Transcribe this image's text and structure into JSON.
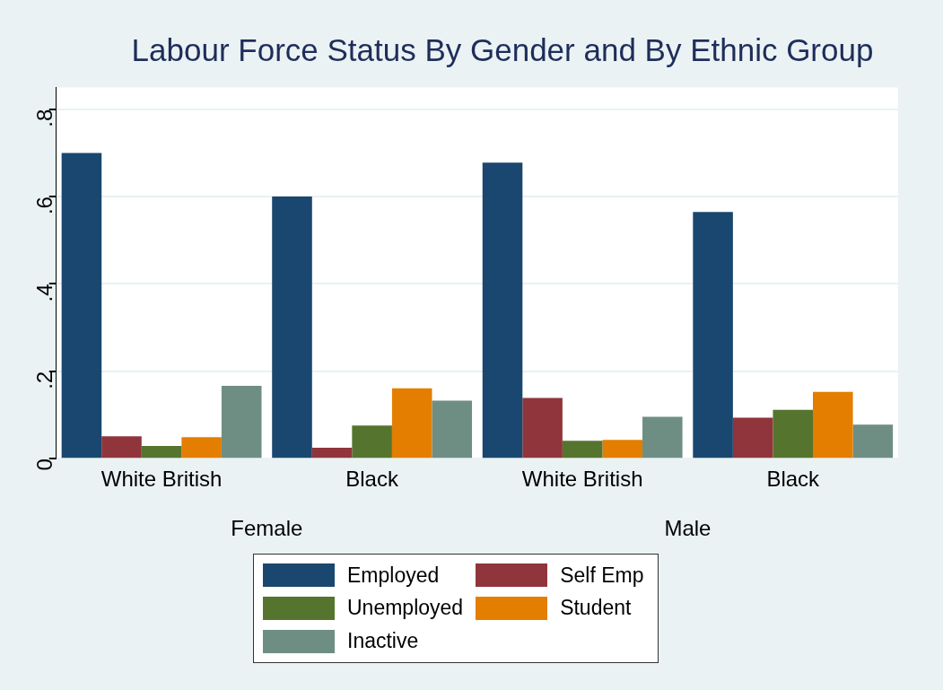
{
  "chart_data": {
    "type": "bar",
    "title": "Labour Force Status By Gender and By Ethnic Group",
    "categories": [
      "White British",
      "Black",
      "White British",
      "Black"
    ],
    "annotations": [
      "Female",
      "Male"
    ],
    "series": [
      {
        "name": "Employed",
        "color": "#1a476f",
        "values": [
          0.7,
          0.6,
          0.678,
          0.565
        ]
      },
      {
        "name": "Self Emp",
        "color": "#90353b",
        "values": [
          0.051,
          0.025,
          0.139,
          0.094
        ]
      },
      {
        "name": "Unemployed",
        "color": "#55752f",
        "values": [
          0.029,
          0.076,
          0.041,
          0.112
        ]
      },
      {
        "name": "Student",
        "color": "#e37e00",
        "values": [
          0.049,
          0.161,
          0.043,
          0.153
        ]
      },
      {
        "name": "Inactive",
        "color": "#6e8e84",
        "values": [
          0.167,
          0.133,
          0.096,
          0.078
        ]
      }
    ],
    "ylim": [
      0,
      0.85
    ],
    "yticks": [
      0,
      {
        "value": 0.2,
        "label": ".2"
      },
      {
        "value": 0.4,
        "label": ".4"
      },
      {
        "value": 0.6,
        "label": ".6"
      },
      {
        "value": 0.8,
        "label": ".8"
      }
    ],
    "grid": "y",
    "legend": "bottom"
  }
}
